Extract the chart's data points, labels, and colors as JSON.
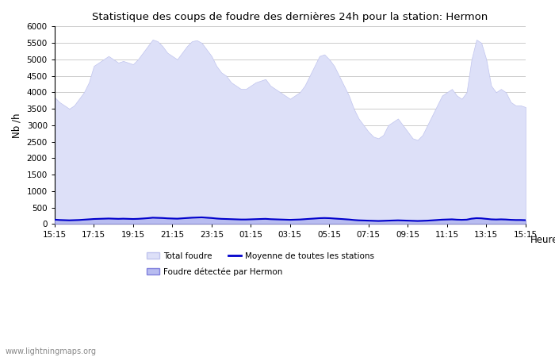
{
  "title": "Statistique des coups de foudre des dernières 24h pour la station: Hermon",
  "ylabel": "Nb /h",
  "xlabel": "Heure",
  "watermark": "www.lightningmaps.org",
  "xlabels": [
    "15:15",
    "17:15",
    "19:15",
    "21:15",
    "23:15",
    "01:15",
    "03:15",
    "05:15",
    "07:15",
    "09:15",
    "11:15",
    "13:15",
    "15:15"
  ],
  "ylim": [
    0,
    6000
  ],
  "yticks": [
    0,
    500,
    1000,
    1500,
    2000,
    2500,
    3000,
    3500,
    4000,
    4500,
    5000,
    5500,
    6000
  ],
  "grid_color": "#cccccc",
  "total_foudre_color": "#dde0f8",
  "total_foudre_edge": "#c0c4ee",
  "hermon_color": "#b8bcf0",
  "hermon_edge": "#8080dd",
  "mean_line_color": "#0000cc",
  "n_points": 97,
  "total_foudre_values": [
    3850,
    3700,
    3600,
    3500,
    3600,
    3800,
    4000,
    4300,
    4800,
    4900,
    5000,
    5100,
    5000,
    4900,
    4950,
    4900,
    4850,
    5000,
    5200,
    5400,
    5600,
    5550,
    5400,
    5200,
    5100,
    5000,
    5200,
    5400,
    5550,
    5580,
    5500,
    5300,
    5100,
    4800,
    4600,
    4500,
    4300,
    4200,
    4100,
    4100,
    4200,
    4300,
    4350,
    4400,
    4200,
    4100,
    4000,
    3900,
    3800,
    3900,
    4000,
    4200,
    4500,
    4800,
    5100,
    5150,
    5000,
    4800,
    4500,
    4200,
    3900,
    3500,
    3200,
    3000,
    2800,
    2650,
    2600,
    2700,
    3000,
    3100,
    3200,
    3000,
    2800,
    2600,
    2550,
    2700,
    3000,
    3300,
    3600,
    3900,
    4000,
    4100,
    3900,
    3800,
    4000,
    5000,
    5600,
    5500,
    5000,
    4200,
    4000,
    4100,
    4000,
    3700,
    3600,
    3600,
    3550
  ],
  "hermon_values": [
    130,
    120,
    115,
    110,
    115,
    120,
    130,
    140,
    150,
    155,
    160,
    165,
    160,
    155,
    160,
    155,
    150,
    155,
    165,
    175,
    190,
    185,
    180,
    170,
    165,
    160,
    170,
    180,
    190,
    195,
    200,
    190,
    180,
    165,
    155,
    150,
    145,
    140,
    135,
    135,
    140,
    145,
    150,
    155,
    145,
    140,
    135,
    130,
    125,
    130,
    135,
    145,
    155,
    165,
    175,
    180,
    175,
    165,
    155,
    145,
    135,
    120,
    110,
    105,
    100,
    95,
    90,
    95,
    100,
    105,
    110,
    105,
    100,
    95,
    90,
    95,
    100,
    110,
    120,
    130,
    135,
    140,
    130,
    125,
    130,
    160,
    175,
    170,
    155,
    140,
    135,
    140,
    135,
    125,
    120,
    120,
    115
  ],
  "mean_values": [
    130,
    120,
    115,
    110,
    115,
    120,
    130,
    140,
    150,
    155,
    160,
    165,
    160,
    155,
    160,
    155,
    150,
    155,
    165,
    175,
    190,
    185,
    180,
    170,
    165,
    160,
    170,
    180,
    190,
    195,
    200,
    190,
    180,
    165,
    155,
    150,
    145,
    140,
    135,
    135,
    140,
    145,
    150,
    155,
    145,
    140,
    135,
    130,
    125,
    130,
    135,
    145,
    155,
    165,
    175,
    180,
    175,
    165,
    155,
    145,
    135,
    120,
    110,
    105,
    100,
    95,
    90,
    95,
    100,
    105,
    110,
    105,
    100,
    95,
    90,
    95,
    100,
    110,
    120,
    130,
    135,
    140,
    130,
    125,
    130,
    160,
    175,
    170,
    155,
    140,
    135,
    140,
    135,
    125,
    120,
    120,
    115
  ]
}
